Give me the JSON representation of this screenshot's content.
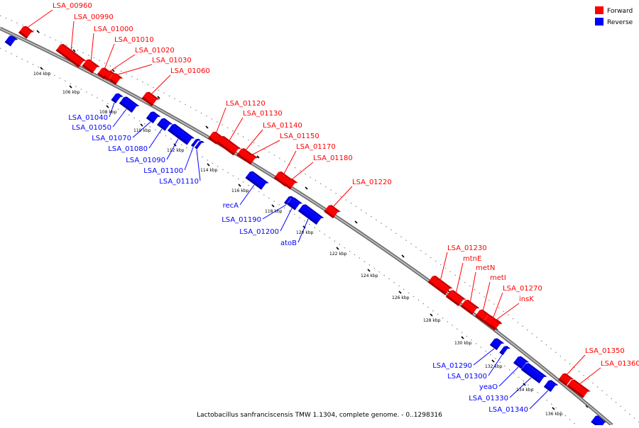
{
  "colors": {
    "forward": "#ff0000",
    "reverse": "#0000ff",
    "backbone": "#808080",
    "guide_dots": "#888888",
    "tick": "#000000"
  },
  "legend": {
    "forward_label": "Forward",
    "reverse_label": "Reverse"
  },
  "caption": "Lactobacillus sanfranciscensis TMW 1.1304, complete genome. - 0..1298316",
  "ticks": [
    "104 kbp",
    "106 kbp",
    "108 kbp",
    "110 kbp",
    "112 kbp",
    "114 kbp",
    "116 kbp",
    "118 kbp",
    "120 kbp",
    "122 kbp",
    "124 kbp",
    "126 kbp",
    "128 kbp",
    "130 kbp",
    "132 kbp",
    "134 kbp",
    "136 kbp"
  ],
  "genes": {
    "forward": [
      "LSA_00960",
      "LSA_00990",
      "LSA_01000",
      "LSA_01010",
      "LSA_01020",
      "LSA_01030",
      "LSA_01060",
      "LSA_01120",
      "LSA_01130",
      "LSA_01140",
      "LSA_01150",
      "LSA_01170",
      "LSA_01180",
      "LSA_01220",
      "LSA_01230",
      "mtnE",
      "metN",
      "metI",
      "LSA_01270",
      "insK",
      "LSA_01350",
      "LSA_01360"
    ],
    "reverse": [
      "LSA_01040",
      "LSA_01050",
      "LSA_01070",
      "LSA_01080",
      "LSA_01090",
      "LSA_01100",
      "LSA_01110",
      "recA",
      "LSA_01190",
      "LSA_01200",
      "atoB",
      "LSA_01290",
      "LSA_01300",
      "yeaO",
      "LSA_01330",
      "LSA_01340"
    ]
  }
}
